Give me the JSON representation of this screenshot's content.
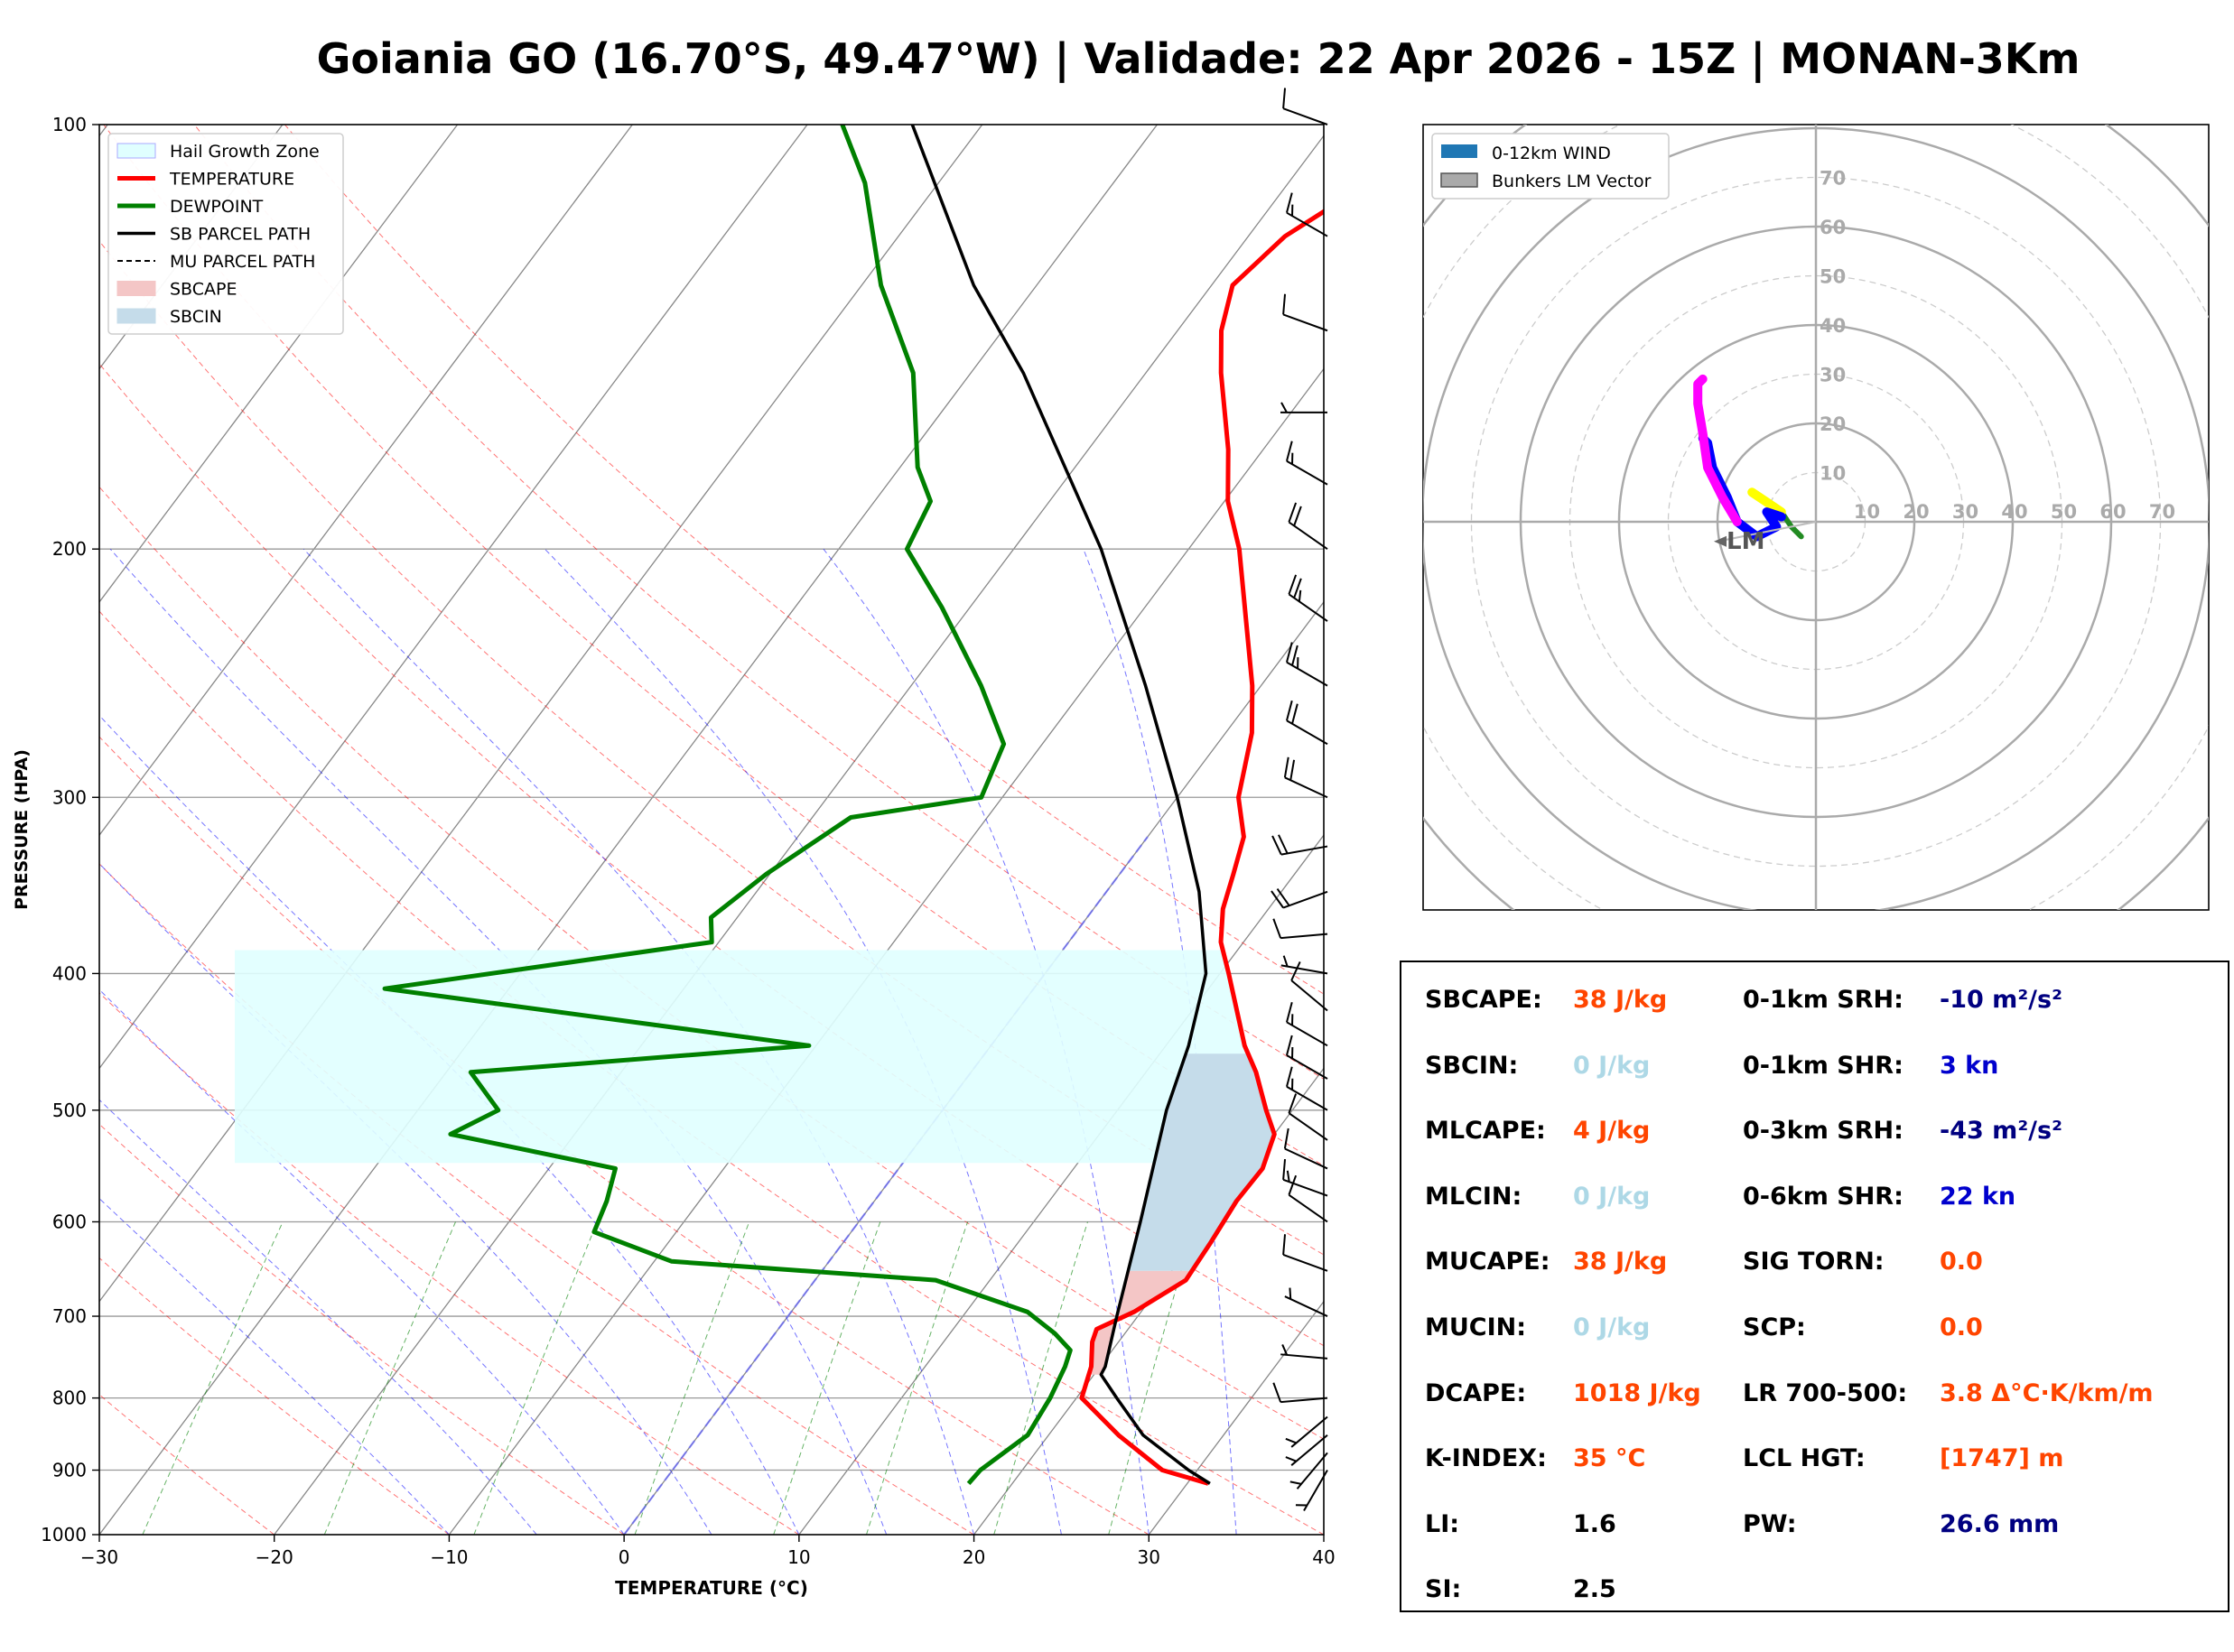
{
  "title": "Goiania GO (16.70°S, 49.47°W) | Validade: 22 Apr 2026 - 15Z | MONAN-3Km",
  "colors": {
    "temperature": "#ff0000",
    "dewpoint": "#008000",
    "parcel": "#000000",
    "hail_zone": "#e0ffff",
    "sbcape_fill": "#f4c6c6",
    "sbcin_fill": "#c5dcea",
    "dry_adiabat": "#ff0000",
    "moist_adiabat": "#0000ff",
    "mixing_ratio": "#008000",
    "freezing_line": "#6666ff",
    "hodo_green": "#228b22",
    "hodo_yellow": "#ffff00",
    "hodo_blue": "#0000ff",
    "hodo_magenta": "#ff00ff",
    "stat_label": "#000000",
    "stat_orange": "#ff4500",
    "stat_lightblue": "#add8e6",
    "stat_navy": "#000080",
    "stat_blue": "#0000cd"
  },
  "chart_data": [
    {
      "type": "line",
      "name": "skew-t",
      "xlabel": "TEMPERATURE (°C)",
      "ylabel": "PRESSURE (HPA)",
      "xlim": [
        -30,
        40
      ],
      "ylim": [
        1000,
        100
      ],
      "y_scale": "log",
      "x_ticks": [
        "−30",
        "−20",
        "−10",
        "0",
        "10",
        "20",
        "30",
        "40"
      ],
      "y_ticks": [
        "100",
        "200",
        "300",
        "400",
        "500",
        "600",
        "700",
        "800",
        "900",
        "1000"
      ],
      "legend": [
        "Hail Growth Zone",
        "TEMPERATURE",
        "DEWPOINT",
        "SB PARCEL PATH",
        "MU PARCEL PATH",
        "SBCAPE",
        "SBCIN"
      ],
      "legend_position": "top-left",
      "series": [
        {
          "name": "TEMPERATURE",
          "points": [
            [
              920,
              31.2
            ],
            [
              900,
              28
            ],
            [
              850,
              24
            ],
            [
              800,
              20.3
            ],
            [
              760,
              19.5
            ],
            [
              730,
              18.5
            ],
            [
              715,
              18.2
            ],
            [
              695,
              19.6
            ],
            [
              660,
              21.2
            ],
            [
              620,
              21
            ],
            [
              580,
              20.7
            ],
            [
              550,
              20.8
            ],
            [
              520,
              20
            ],
            [
              500,
              18.5
            ],
            [
              470,
              16.3
            ],
            [
              450,
              14.5
            ],
            [
              400,
              10.5
            ],
            [
              380,
              8.7
            ],
            [
              360,
              7.4
            ],
            [
              340,
              6.5
            ],
            [
              320,
              5.5
            ],
            [
              300,
              3.5
            ],
            [
              270,
              1.5
            ],
            [
              250,
              -0.5
            ],
            [
              200,
              -7.1
            ],
            [
              185,
              -9.8
            ],
            [
              170,
              -12
            ],
            [
              150,
              -15.7
            ],
            [
              140,
              -17.5
            ],
            [
              130,
              -18.8
            ],
            [
              120,
              -17.9
            ],
            [
              110,
              -15.4
            ],
            [
              100,
              -13.9
            ]
          ]
        },
        {
          "name": "DEWPOINT",
          "points": [
            [
              920,
              17.5
            ],
            [
              900,
              17.6
            ],
            [
              850,
              18.8
            ],
            [
              800,
              18.5
            ],
            [
              760,
              18
            ],
            [
              740,
              17.6
            ],
            [
              720,
              16
            ],
            [
              695,
              13.5
            ],
            [
              660,
              6.9
            ],
            [
              640,
              -9
            ],
            [
              610,
              -14.7
            ],
            [
              580,
              -15.3
            ],
            [
              550,
              -16.2
            ],
            [
              520,
              -27.1
            ],
            [
              500,
              -25.4
            ],
            [
              470,
              -28.6
            ],
            [
              450,
              -10.4
            ],
            [
              410,
              -37.1
            ],
            [
              380,
              -20.4
            ],
            [
              365,
              -21.5
            ],
            [
              340,
              -20.2
            ],
            [
              310,
              -17.8
            ],
            [
              300,
              -11.2
            ],
            [
              275,
              -12.2
            ],
            [
              250,
              -16
            ],
            [
              220,
              -21.6
            ],
            [
              200,
              -26.1
            ],
            [
              185,
              -26.8
            ],
            [
              175,
              -29
            ],
            [
              150,
              -33.3
            ],
            [
              130,
              -38.9
            ],
            [
              110,
              -44.2
            ],
            [
              100,
              -48
            ]
          ]
        },
        {
          "name": "SB PARCEL PATH",
          "points": [
            [
              920,
              31.3
            ],
            [
              900,
              29.5
            ],
            [
              850,
              25.4
            ],
            [
              800,
              22.3
            ],
            [
              770,
              20.4
            ],
            [
              760,
              20.3
            ],
            [
              700,
              18.8
            ],
            [
              600,
              16.1
            ],
            [
              500,
              12.8
            ],
            [
              450,
              11.3
            ],
            [
              400,
              9.2
            ],
            [
              350,
              5.3
            ],
            [
              300,
              0
            ],
            [
              250,
              -6.6
            ],
            [
              200,
              -15
            ],
            [
              150,
              -27
            ],
            [
              130,
              -33.6
            ],
            [
              100,
              -44
            ]
          ]
        }
      ],
      "hail_growth_zone": {
        "p_bottom": 545,
        "p_top": 385
      },
      "dry_adiabats_theta_C": [
        -30,
        -20,
        -10,
        0,
        10,
        20,
        30,
        40,
        50,
        60,
        70,
        80,
        90,
        100
      ],
      "moist_adiabats_C": [
        -10,
        -5,
        0,
        5,
        10,
        15,
        20,
        25,
        30,
        35
      ],
      "mixing_ratios_gkg": [
        0.4,
        1,
        2,
        4,
        7,
        10,
        16,
        24
      ],
      "wind_barbs": [
        {
          "p": 100,
          "dir": 290,
          "spd": 10
        },
        {
          "p": 120,
          "dir": 300,
          "spd": 15
        },
        {
          "p": 140,
          "dir": 290,
          "spd": 10
        },
        {
          "p": 160,
          "dir": 270,
          "spd": 5
        },
        {
          "p": 180,
          "dir": 300,
          "spd": 15
        },
        {
          "p": 200,
          "dir": 305,
          "spd": 20
        },
        {
          "p": 225,
          "dir": 305,
          "spd": 25
        },
        {
          "p": 250,
          "dir": 300,
          "spd": 25
        },
        {
          "p": 275,
          "dir": 300,
          "spd": 20
        },
        {
          "p": 300,
          "dir": 295,
          "spd": 20
        },
        {
          "p": 325,
          "dir": 260,
          "spd": 20
        },
        {
          "p": 350,
          "dir": 250,
          "spd": 20
        },
        {
          "p": 375,
          "dir": 265,
          "spd": 10
        },
        {
          "p": 400,
          "dir": 280,
          "spd": 5
        },
        {
          "p": 425,
          "dir": 310,
          "spd": 10
        },
        {
          "p": 450,
          "dir": 300,
          "spd": 15
        },
        {
          "p": 475,
          "dir": 300,
          "spd": 15
        },
        {
          "p": 500,
          "dir": 300,
          "spd": 15
        },
        {
          "p": 525,
          "dir": 305,
          "spd": 10
        },
        {
          "p": 550,
          "dir": 295,
          "spd": 10
        },
        {
          "p": 575,
          "dir": 290,
          "spd": 15
        },
        {
          "p": 600,
          "dir": 305,
          "spd": 10
        },
        {
          "p": 650,
          "dir": 290,
          "spd": 10
        },
        {
          "p": 700,
          "dir": 295,
          "spd": 5
        },
        {
          "p": 750,
          "dir": 275,
          "spd": 5
        },
        {
          "p": 800,
          "dir": 265,
          "spd": 10
        },
        {
          "p": 825,
          "dir": 230,
          "spd": 5
        },
        {
          "p": 850,
          "dir": 230,
          "spd": 5
        },
        {
          "p": 875,
          "dir": 220,
          "spd": 5
        },
        {
          "p": 900,
          "dir": 210,
          "spd": 5
        }
      ]
    },
    {
      "type": "line",
      "name": "hodograph",
      "legend": [
        "0-12km WIND",
        "Bunkers LM Vector"
      ],
      "legend_position": "top-left",
      "ring_labels": [
        "10",
        "20",
        "30",
        "40",
        "50",
        "60",
        "70"
      ],
      "axis_max_kn": 80,
      "lm_label": "LM",
      "lm_vector": [
        -20,
        -4
      ],
      "segments": [
        {
          "color": "green",
          "points": [
            [
              -3,
              -3
            ],
            [
              -5,
              -1
            ],
            [
              -7,
              2
            ]
          ]
        },
        {
          "color": "yellow",
          "points": [
            [
              -7,
              2
            ],
            [
              -10,
              4
            ],
            [
              -13,
              6
            ]
          ]
        },
        {
          "color": "blue",
          "points": [
            [
              -7,
              1
            ],
            [
              -10,
              2
            ],
            [
              -8,
              -1
            ],
            [
              -12,
              -3
            ],
            [
              -16,
              0
            ],
            [
              -18,
              5
            ],
            [
              -21,
              11
            ],
            [
              -22,
              16
            ],
            [
              -23,
              17
            ]
          ]
        },
        {
          "color": "magenta",
          "points": [
            [
              -16,
              0
            ],
            [
              -19,
              5
            ],
            [
              -22,
              11
            ],
            [
              -23,
              18
            ],
            [
              -24,
              24
            ],
            [
              -24,
              28
            ],
            [
              -23,
              29
            ]
          ]
        }
      ]
    }
  ],
  "stats": {
    "left": [
      {
        "label": "SBCAPE:",
        "value": "38 J/kg",
        "color": "orange"
      },
      {
        "label": "SBCIN:",
        "value": "0 J/kg",
        "color": "lightblue"
      },
      {
        "label": "MLCAPE:",
        "value": "4 J/kg",
        "color": "orange"
      },
      {
        "label": "MLCIN:",
        "value": "0 J/kg",
        "color": "lightblue"
      },
      {
        "label": "MUCAPE:",
        "value": "38 J/kg",
        "color": "orange"
      },
      {
        "label": "MUCIN:",
        "value": "0 J/kg",
        "color": "lightblue"
      },
      {
        "label": "DCAPE:",
        "value": "1018 J/kg",
        "color": "orange"
      },
      {
        "label": "K-INDEX:",
        "value": "35 °C",
        "color": "orange"
      },
      {
        "label": "LI:",
        "value": "1.6",
        "color": "black"
      },
      {
        "label": "SI:",
        "value": "2.5",
        "color": "black"
      }
    ],
    "right": [
      {
        "label": "0-1km SRH:",
        "value": "-10 m²/s²",
        "color": "navy"
      },
      {
        "label": "0-1km SHR:",
        "value": "3 kn",
        "color": "blue"
      },
      {
        "label": "0-3km SRH:",
        "value": "-43 m²/s²",
        "color": "navy"
      },
      {
        "label": "0-6km SHR:",
        "value": "22 kn",
        "color": "blue"
      },
      {
        "label": "SIG TORN:",
        "value": "0.0",
        "color": "orange"
      },
      {
        "label": "SCP:",
        "value": "0.0",
        "color": "orange"
      },
      {
        "label": "LR 700-500:",
        "value": "3.8 Δ°C·K/km/m",
        "color": "orange"
      },
      {
        "label": "LCL HGT:",
        "value": "[1747] m",
        "color": "orange"
      },
      {
        "label": "PW:",
        "value": "26.6 mm",
        "color": "navy"
      }
    ]
  }
}
